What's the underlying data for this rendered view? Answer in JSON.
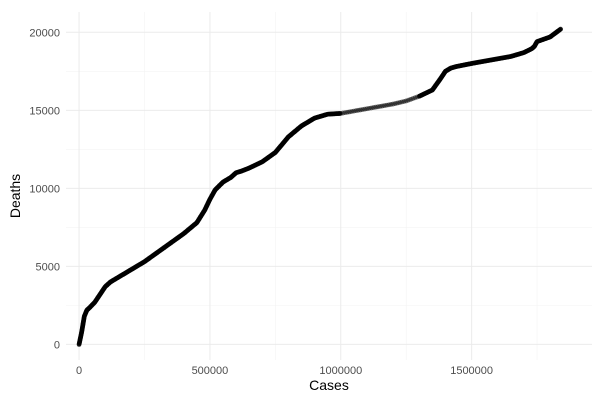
{
  "chart_data": {
    "type": "scatter",
    "title": "",
    "xlabel": "Cases",
    "ylabel": "Deaths",
    "xlim": [
      -50000,
      1960000
    ],
    "ylim": [
      -1000,
      21300
    ],
    "x_ticks": [
      0,
      500000,
      1000000,
      1500000
    ],
    "x_tick_labels": [
      "0",
      "500000",
      "1000000",
      "1500000"
    ],
    "y_ticks": [
      0,
      5000,
      10000,
      15000,
      20000
    ],
    "y_tick_labels": [
      "0",
      "5000",
      "10000",
      "15000",
      "20000"
    ],
    "grid": true,
    "legend": "none",
    "point_color": "#000000",
    "series": [
      {
        "x": [
          0,
          10000,
          20000,
          30000,
          40000,
          60000,
          80000,
          100000,
          120000,
          150000,
          200000,
          250000,
          300000,
          350000,
          400000,
          450000,
          480000,
          500000,
          520000,
          550000,
          580000,
          600000,
          620000,
          650000,
          700000,
          750000,
          800000,
          850000,
          900000,
          950000,
          1000000,
          1050000,
          1100000,
          1150000,
          1200000,
          1250000,
          1300000,
          1350000,
          1380000,
          1400000,
          1420000,
          1440000,
          1470000,
          1500000,
          1550000,
          1600000,
          1650000,
          1700000,
          1730000,
          1740000,
          1750000,
          1800000,
          1840000
        ],
        "y": [
          0,
          800,
          1800,
          2200,
          2350,
          2700,
          3200,
          3700,
          4000,
          4300,
          4800,
          5300,
          5900,
          6500,
          7100,
          7800,
          8600,
          9300,
          9900,
          10400,
          10700,
          11000,
          11100,
          11300,
          11700,
          12300,
          13300,
          14000,
          14500,
          14750,
          14800,
          14950,
          15100,
          15250,
          15400,
          15600,
          15900,
          16300,
          17000,
          17500,
          17700,
          17800,
          17900,
          18000,
          18150,
          18300,
          18450,
          18700,
          18950,
          19100,
          19400,
          19700,
          20200
        ]
      }
    ]
  }
}
